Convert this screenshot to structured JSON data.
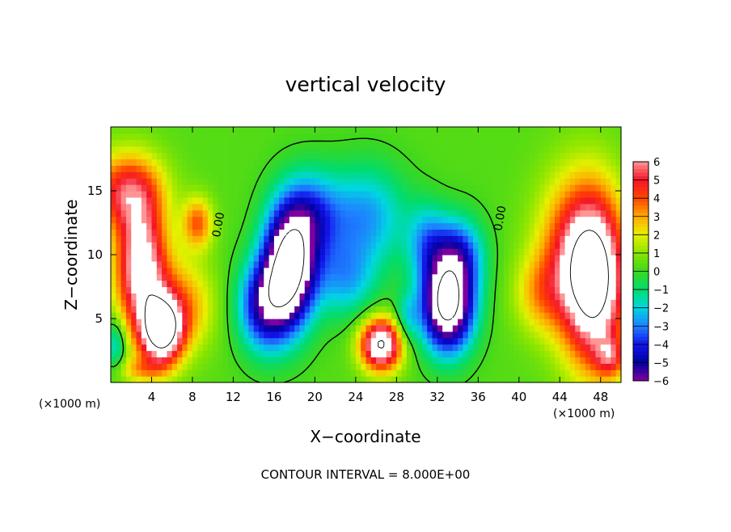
{
  "chart_data": {
    "type": "heatmap",
    "title": "vertical velocity",
    "xlabel": "X−coordinate",
    "ylabel": "Z−coordinate",
    "x_scale_label": "(×1000 m)",
    "z_scale_label": "(×1000 m)",
    "contour_interval_text": "CONTOUR INTERVAL = 8.000E+00",
    "xlim": [
      0,
      50
    ],
    "ylim": [
      0,
      20
    ],
    "x_ticks": [
      4,
      8,
      12,
      16,
      20,
      24,
      28,
      32,
      36,
      40,
      44,
      48
    ],
    "y_ticks": [
      5,
      10,
      15
    ],
    "colorbar": {
      "range": [
        -6,
        6
      ],
      "tick_values": [
        6,
        5,
        4,
        3,
        2,
        1,
        0,
        -1,
        -2,
        -3,
        -4,
        -5,
        -6
      ],
      "tick_labels": [
        "6",
        "5",
        "4",
        "3",
        "2",
        "1",
        "0",
        "−1",
        "−2",
        "−3",
        "−4",
        "−5",
        "−6"
      ]
    },
    "contour_labels": [
      {
        "text": "0.00",
        "x": 10.9,
        "z": 12.3
      },
      {
        "text": "0.00",
        "x": 38.5,
        "z": 12.8
      }
    ],
    "background_value": 0.3,
    "features": [
      {
        "x": 1.5,
        "z": 15,
        "sx": 3.5,
        "sz": 3,
        "value": 4.5
      },
      {
        "x": 3,
        "z": 9,
        "sx": 2.5,
        "sz": 5,
        "value": 7
      },
      {
        "x": 5,
        "z": 4,
        "sx": 2,
        "sz": 2.5,
        "value": 8
      },
      {
        "x": 8.5,
        "z": 12.5,
        "sx": 1.5,
        "sz": 2,
        "value": 3.5
      },
      {
        "x": 7,
        "z": 6,
        "sx": 3,
        "sz": 3.5,
        "value": 3
      },
      {
        "x": 0.5,
        "z": 3,
        "sx": 1,
        "sz": 2,
        "value": -2.5
      },
      {
        "x": 3,
        "z": 1,
        "sx": 2.5,
        "sz": 1,
        "value": 2
      },
      {
        "x": 17.5,
        "z": 9,
        "sx": 2.5,
        "sz": 4.5,
        "value": -9
      },
      {
        "x": 15,
        "z": 6,
        "sx": 2.5,
        "sz": 3.5,
        "value": -5
      },
      {
        "x": 19.5,
        "z": 13,
        "sx": 3,
        "sz": 3.5,
        "value": -3.5
      },
      {
        "x": 25,
        "z": 13,
        "sx": 4,
        "sz": 4,
        "value": -3
      },
      {
        "x": 23,
        "z": 8,
        "sx": 3,
        "sz": 3,
        "value": -2.5
      },
      {
        "x": 26.5,
        "z": 3,
        "sx": 2,
        "sz": 2,
        "value": 8
      },
      {
        "x": 33,
        "z": 6,
        "sx": 2.5,
        "sz": 3.5,
        "value": -9
      },
      {
        "x": 34,
        "z": 10,
        "sx": 2.5,
        "sz": 3,
        "value": -4
      },
      {
        "x": 31,
        "z": 11,
        "sx": 2,
        "sz": 3,
        "value": -2.5
      },
      {
        "x": 29,
        "z": 5,
        "sx": 1.2,
        "sz": 2,
        "value": -2
      },
      {
        "x": 47.5,
        "z": 8,
        "sx": 3,
        "sz": 6.5,
        "value": 8
      },
      {
        "x": 45,
        "z": 10,
        "sx": 3.5,
        "sz": 6,
        "value": 3.5
      },
      {
        "x": 42,
        "z": 7,
        "sx": 2.5,
        "sz": 3,
        "value": 2
      },
      {
        "x": 49,
        "z": 2,
        "sx": 1.5,
        "sz": 1.5,
        "value": 3
      }
    ]
  }
}
